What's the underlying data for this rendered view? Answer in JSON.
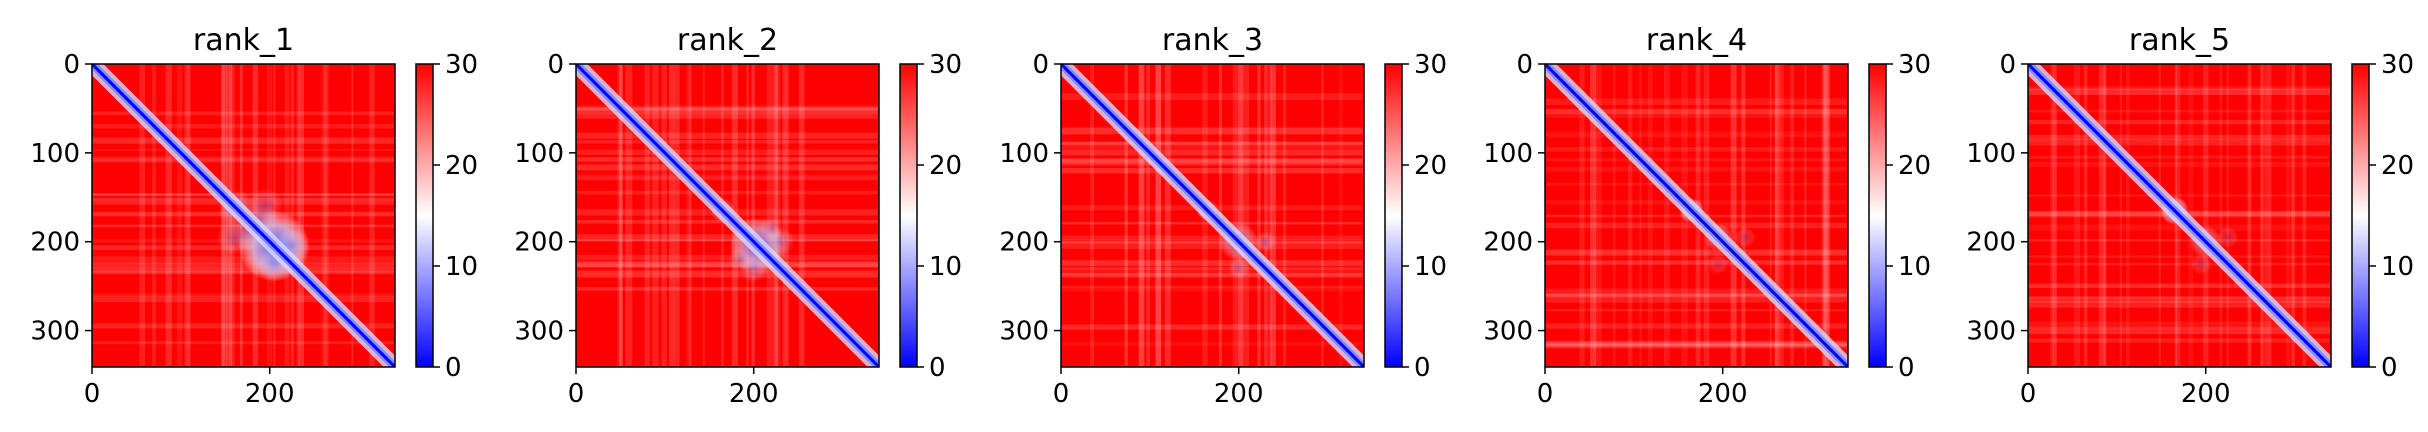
{
  "chart_data": [
    {
      "type": "heatmap",
      "title": "rank_1",
      "x_ticks": [
        "0",
        "200"
      ],
      "y_ticks": [
        "0",
        "100",
        "200",
        "300"
      ],
      "xlim": [
        0,
        341
      ],
      "ylim": [
        341,
        0
      ],
      "colorbar": {
        "ticks": [
          "0",
          "10",
          "20",
          "30"
        ],
        "range": [
          0,
          30
        ],
        "colormap": "bwr"
      },
      "blobs": [
        [
          205,
          205,
          40,
          0.8
        ],
        [
          165,
          160,
          18,
          0.35
        ],
        [
          190,
          175,
          20,
          0.35
        ],
        [
          225,
          205,
          20,
          0.35
        ],
        [
          160,
          195,
          20,
          0.3
        ]
      ]
    },
    {
      "type": "heatmap",
      "title": "rank_2",
      "x_ticks": [
        "0",
        "200"
      ],
      "y_ticks": [
        "0",
        "100",
        "200",
        "300"
      ],
      "xlim": [
        0,
        341
      ],
      "ylim": [
        341,
        0
      ],
      "colorbar": {
        "ticks": [
          "0",
          "10",
          "20",
          "30"
        ],
        "range": [
          0,
          30
        ],
        "colormap": "bwr"
      },
      "blobs": [
        [
          205,
          205,
          32,
          0.6
        ],
        [
          165,
          165,
          14,
          0.3
        ],
        [
          230,
          200,
          16,
          0.3
        ],
        [
          185,
          220,
          14,
          0.25
        ]
      ]
    },
    {
      "type": "heatmap",
      "title": "rank_3",
      "x_ticks": [
        "0",
        "200"
      ],
      "y_ticks": [
        "0",
        "100",
        "200",
        "300"
      ],
      "xlim": [
        0,
        341
      ],
      "ylim": [
        341,
        0
      ],
      "colorbar": {
        "ticks": [
          "0",
          "10",
          "20",
          "30"
        ],
        "range": [
          0,
          30
        ],
        "colormap": "bwr"
      },
      "blobs": [
        [
          165,
          165,
          12,
          0.4
        ],
        [
          200,
          200,
          22,
          0.35
        ],
        [
          230,
          200,
          12,
          0.3
        ]
      ]
    },
    {
      "type": "heatmap",
      "title": "rank_4",
      "x_ticks": [
        "0",
        "200"
      ],
      "y_ticks": [
        "0",
        "100",
        "200",
        "300"
      ],
      "xlim": [
        0,
        341
      ],
      "ylim": [
        341,
        0
      ],
      "colorbar": {
        "ticks": [
          "0",
          "10",
          "20",
          "30"
        ],
        "range": [
          0,
          30
        ],
        "colormap": "bwr"
      },
      "blobs": [
        [
          165,
          165,
          14,
          0.55
        ],
        [
          195,
          195,
          16,
          0.3
        ],
        [
          225,
          195,
          12,
          0.25
        ]
      ]
    },
    {
      "type": "heatmap",
      "title": "rank_5",
      "x_ticks": [
        "0",
        "200"
      ],
      "y_ticks": [
        "0",
        "100",
        "200",
        "300"
      ],
      "xlim": [
        0,
        341
      ],
      "ylim": [
        341,
        0
      ],
      "colorbar": {
        "ticks": [
          "0",
          "10",
          "20",
          "30"
        ],
        "range": [
          0,
          30
        ],
        "colormap": "bwr"
      },
      "blobs": [
        [
          165,
          165,
          16,
          0.6
        ],
        [
          200,
          200,
          18,
          0.3
        ],
        [
          225,
          195,
          12,
          0.25
        ]
      ]
    }
  ]
}
